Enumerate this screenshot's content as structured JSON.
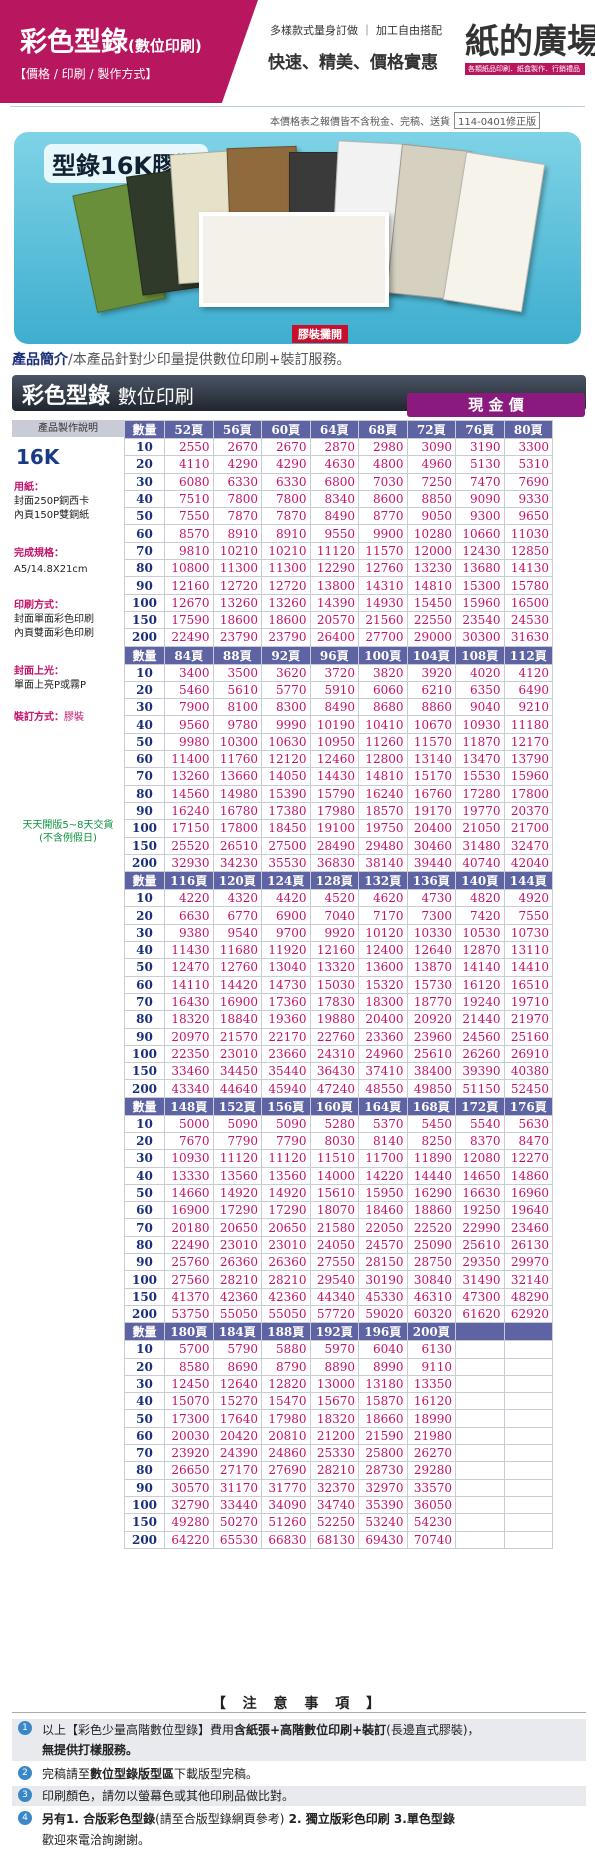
{
  "header": {
    "title": "彩色型錄",
    "title_small": "(數位印刷)",
    "subtitle": "【價格 / 印刷 / 製作方式】",
    "tagline": "多樣款式量身訂做 ｜ 加工自由搭配",
    "slogan": "快速、精美、價格實惠",
    "logo_text": "紙的廣場",
    "logo_sub": "各類紙品印刷．紙盒製作．行銷禮品"
  },
  "notice": {
    "text": "本價格表之報價皆不含稅金、完稿、送貨",
    "version": "114-0401修正版"
  },
  "hero": {
    "title": "型錄16K膠裝",
    "caption": "膠裝攤開"
  },
  "intro": {
    "label": "產品簡介",
    "text": "/本產品針對少印量提供數位印刷+裝訂服務。"
  },
  "band": {
    "title": "彩色型錄",
    "title_suffix": "數位印刷",
    "cash_label": "現 金 價"
  },
  "specs": {
    "head": "產品製作說明",
    "size": "16K",
    "paper_label": "用紙：",
    "paper_1": "封面250P銅西卡",
    "paper_2": "內頁150P雙銅紙",
    "finish_label": "完成規格：",
    "finish_value": "A5/14.8X21cm",
    "print_label": "印刷方式：",
    "print_1": "封面單面彩色印刷",
    "print_2": "內頁雙面彩色印刷",
    "coat_label": "封面上光：",
    "coat_value": "單面上亮P或霧P",
    "bind_label": "裝訂方式：",
    "bind_value": "膠裝",
    "delivery_1": "天天開版5~8天交貨",
    "delivery_2": "(不含例假日)"
  },
  "table": {
    "qty_label": "數量",
    "quantities": [
      10,
      20,
      30,
      40,
      50,
      60,
      70,
      80,
      90,
      100,
      150,
      200
    ],
    "blocks": [
      {
        "pages": [
          "52頁",
          "56頁",
          "60頁",
          "64頁",
          "68頁",
          "72頁",
          "76頁",
          "80頁"
        ],
        "rows": [
          [
            2550,
            2670,
            2670,
            2870,
            2980,
            3090,
            3190,
            3300
          ],
          [
            4110,
            4290,
            4290,
            4630,
            4800,
            4960,
            5130,
            5310
          ],
          [
            6080,
            6330,
            6330,
            6800,
            7030,
            7250,
            7470,
            7690
          ],
          [
            7510,
            7800,
            7800,
            8340,
            8600,
            8850,
            9090,
            9330
          ],
          [
            7550,
            7870,
            7870,
            8490,
            8770,
            9050,
            9300,
            9650
          ],
          [
            8570,
            8910,
            8910,
            9550,
            9900,
            10280,
            10660,
            11030
          ],
          [
            9810,
            10210,
            10210,
            11120,
            11570,
            12000,
            12430,
            12850
          ],
          [
            10800,
            11300,
            11300,
            12290,
            12760,
            13230,
            13680,
            14130
          ],
          [
            12160,
            12720,
            12720,
            13800,
            14310,
            14810,
            15300,
            15780
          ],
          [
            12670,
            13260,
            13260,
            14390,
            14930,
            15450,
            15960,
            16500
          ],
          [
            17590,
            18600,
            18600,
            20570,
            21560,
            22550,
            23540,
            24530
          ],
          [
            22490,
            23790,
            23790,
            26400,
            27700,
            29000,
            30300,
            31630
          ]
        ]
      },
      {
        "pages": [
          "84頁",
          "88頁",
          "92頁",
          "96頁",
          "100頁",
          "104頁",
          "108頁",
          "112頁"
        ],
        "rows": [
          [
            3400,
            3500,
            3620,
            3720,
            3820,
            3920,
            4020,
            4120
          ],
          [
            5460,
            5610,
            5770,
            5910,
            6060,
            6210,
            6350,
            6490
          ],
          [
            7900,
            8100,
            8300,
            8490,
            8680,
            8860,
            9040,
            9210
          ],
          [
            9560,
            9780,
            9990,
            10190,
            10410,
            10670,
            10930,
            11180
          ],
          [
            9980,
            10300,
            10630,
            10950,
            11260,
            11570,
            11870,
            12170
          ],
          [
            11400,
            11760,
            12120,
            12460,
            12800,
            13140,
            13470,
            13790
          ],
          [
            13260,
            13660,
            14050,
            14430,
            14810,
            15170,
            15530,
            15960
          ],
          [
            14560,
            14980,
            15390,
            15790,
            16240,
            16760,
            17280,
            17800
          ],
          [
            16240,
            16780,
            17380,
            17980,
            18570,
            19170,
            19770,
            20370
          ],
          [
            17150,
            17800,
            18450,
            19100,
            19750,
            20400,
            21050,
            21700
          ],
          [
            25520,
            26510,
            27500,
            28490,
            29480,
            30460,
            31480,
            32470
          ],
          [
            32930,
            34230,
            35530,
            36830,
            38140,
            39440,
            40740,
            42040
          ]
        ]
      },
      {
        "pages": [
          "116頁",
          "120頁",
          "124頁",
          "128頁",
          "132頁",
          "136頁",
          "140頁",
          "144頁"
        ],
        "rows": [
          [
            4220,
            4320,
            4420,
            4520,
            4620,
            4730,
            4820,
            4920
          ],
          [
            6630,
            6770,
            6900,
            7040,
            7170,
            7300,
            7420,
            7550
          ],
          [
            9380,
            9540,
            9700,
            9920,
            10120,
            10330,
            10530,
            10730
          ],
          [
            11430,
            11680,
            11920,
            12160,
            12400,
            12640,
            12870,
            13110
          ],
          [
            12470,
            12760,
            13040,
            13320,
            13600,
            13870,
            14140,
            14410
          ],
          [
            14110,
            14420,
            14730,
            15030,
            15320,
            15730,
            16120,
            16510
          ],
          [
            16430,
            16900,
            17360,
            17830,
            18300,
            18770,
            19240,
            19710
          ],
          [
            18320,
            18840,
            19360,
            19880,
            20400,
            20920,
            21440,
            21970
          ],
          [
            20970,
            21570,
            22170,
            22760,
            23360,
            23960,
            24560,
            25160
          ],
          [
            22350,
            23010,
            23660,
            24310,
            24960,
            25610,
            26260,
            26910
          ],
          [
            33460,
            34450,
            35440,
            36430,
            37410,
            38400,
            39390,
            40380
          ],
          [
            43340,
            44640,
            45940,
            47240,
            48550,
            49850,
            51150,
            52450
          ]
        ]
      },
      {
        "pages": [
          "148頁",
          "152頁",
          "156頁",
          "160頁",
          "164頁",
          "168頁",
          "172頁",
          "176頁"
        ],
        "rows": [
          [
            5000,
            5090,
            5090,
            5280,
            5370,
            5450,
            5540,
            5630
          ],
          [
            7670,
            7790,
            7790,
            8030,
            8140,
            8250,
            8370,
            8470
          ],
          [
            10930,
            11120,
            11120,
            11510,
            11700,
            11890,
            12080,
            12270
          ],
          [
            13330,
            13560,
            13560,
            14000,
            14220,
            14440,
            14650,
            14860
          ],
          [
            14660,
            14920,
            14920,
            15610,
            15950,
            16290,
            16630,
            16960
          ],
          [
            16900,
            17290,
            17290,
            18070,
            18460,
            18860,
            19250,
            19640
          ],
          [
            20180,
            20650,
            20650,
            21580,
            22050,
            22520,
            22990,
            23460
          ],
          [
            22490,
            23010,
            23010,
            24050,
            24570,
            25090,
            25610,
            26130
          ],
          [
            25760,
            26360,
            26360,
            27550,
            28150,
            28750,
            29350,
            29970
          ],
          [
            27560,
            28210,
            28210,
            29540,
            30190,
            30840,
            31490,
            32140
          ],
          [
            41370,
            42360,
            42360,
            44340,
            45330,
            46310,
            47300,
            48290
          ],
          [
            53750,
            55050,
            55050,
            57720,
            59020,
            60320,
            61620,
            62920
          ]
        ]
      },
      {
        "pages": [
          "180頁",
          "184頁",
          "188頁",
          "192頁",
          "196頁",
          "200頁",
          "",
          ""
        ],
        "rows": [
          [
            5700,
            5790,
            5880,
            5970,
            6040,
            6130,
            null,
            null
          ],
          [
            8580,
            8690,
            8790,
            8890,
            8990,
            9110,
            null,
            null
          ],
          [
            12450,
            12640,
            12820,
            13000,
            13180,
            13350,
            null,
            null
          ],
          [
            15070,
            15270,
            15470,
            15670,
            15870,
            16120,
            null,
            null
          ],
          [
            17300,
            17640,
            17980,
            18320,
            18660,
            18990,
            null,
            null
          ],
          [
            20030,
            20420,
            20810,
            21200,
            21590,
            21980,
            null,
            null
          ],
          [
            23920,
            24390,
            24860,
            25330,
            25800,
            26270,
            null,
            null
          ],
          [
            26650,
            27170,
            27690,
            28210,
            28730,
            29280,
            null,
            null
          ],
          [
            30570,
            31170,
            31770,
            32370,
            32970,
            33570,
            null,
            null
          ],
          [
            32790,
            33440,
            34090,
            34740,
            35390,
            36050,
            null,
            null
          ],
          [
            49280,
            50270,
            51260,
            52250,
            53240,
            54230,
            null,
            null
          ],
          [
            64220,
            65530,
            66830,
            68130,
            69430,
            70740,
            null,
            null
          ]
        ]
      }
    ]
  },
  "notes": {
    "title": "【 注 意 事 項 】",
    "n1_a": "以上【彩色少量高階數位型錄】費用",
    "n1_b": "含紙張+高階數位印刷+裝訂",
    "n1_c": "(長邊直式膠裝)，",
    "n1_d": "無提供打樣服務。",
    "n2_a": "完稿請至",
    "n2_b": "數位型錄版型區",
    "n2_c": "下載版型完稿。",
    "n3": "印刷顏色，請勿以螢幕色或其他印刷品做比對。",
    "n4_a": "另有",
    "n4_b": "1. 合版彩色型錄",
    "n4_c": "(請至合版型錄網頁參考)",
    "n4_d": " 2. 獨立版彩色印刷 3.單色型錄",
    "n4_e": "歡迎來電洽詢謝謝。"
  },
  "colors": {
    "brand": "#b8175f",
    "price_text": "#c4126b",
    "qty_text": "#1a2f7a",
    "header_row": "#5d63a3",
    "cash_label": "#8b1a7f",
    "delivery": "#0b9140"
  }
}
